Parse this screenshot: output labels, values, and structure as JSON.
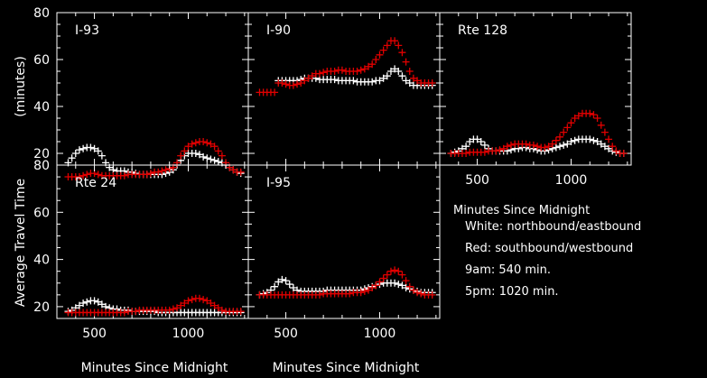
{
  "chart_data": {
    "type": "scatter",
    "layout": "3x2 grid of small multiples (bottom-right cell holds legend text)",
    "xlabel": "Minutes Since Midnight",
    "ylabel": "Average Travel Time (minutes)",
    "xlim": [
      300,
      1320
    ],
    "ylim": [
      15,
      80
    ],
    "xticks": [
      500,
      1000
    ],
    "yticks": [
      20,
      40,
      60,
      80
    ],
    "colors": {
      "northbound": "#ffffff",
      "southbound": "#e00000",
      "background": "#000000"
    },
    "x": [
      360,
      380,
      400,
      420,
      440,
      460,
      480,
      500,
      520,
      540,
      560,
      580,
      600,
      620,
      640,
      660,
      680,
      700,
      720,
      740,
      760,
      780,
      800,
      820,
      840,
      860,
      880,
      900,
      920,
      940,
      960,
      980,
      1000,
      1020,
      1040,
      1060,
      1080,
      1100,
      1120,
      1140,
      1160,
      1180,
      1200,
      1220,
      1240,
      1260,
      1280
    ],
    "panels": [
      {
        "title": "I-93",
        "series": [
          {
            "name": "White: northbound/eastbound",
            "values": [
              16,
              18,
              20,
              21.5,
              22,
              22.5,
              22.5,
              22,
              21,
              19,
              16,
              14,
              13,
              12.5,
              12.5,
              12.5,
              12,
              12,
              11.5,
              11,
              11,
              11,
              11,
              11,
              11,
              11,
              11.5,
              12,
              13,
              15,
              17,
              19,
              20,
              20,
              20,
              19.5,
              18.5,
              18,
              17.5,
              17,
              16.5,
              16,
              15,
              14,
              13,
              12,
              11.5
            ]
          },
          {
            "name": "Red: southbound/westbound",
            "values": [
              10,
              10,
              10,
              10,
              10.5,
              11,
              11.5,
              11.5,
              11,
              10.5,
              10.5,
              10.5,
              10.5,
              10.5,
              10.5,
              10.5,
              11,
              11,
              11,
              11,
              11,
              11,
              11.5,
              12,
              12,
              12.5,
              13,
              13.5,
              14,
              16,
              19,
              21,
              23,
              24,
              24.5,
              25,
              25,
              24.5,
              24,
              23,
              21,
              19,
              16,
              14,
              13,
              12,
              12
            ]
          }
        ]
      },
      {
        "title": "I-90",
        "series": [
          {
            "name": "White: northbound/eastbound",
            "values": [
              null,
              null,
              null,
              null,
              null,
              51,
              51,
              51,
              51,
              51,
              51,
              51.5,
              52,
              52,
              52,
              52,
              51.5,
              51.5,
              51.5,
              51.5,
              51.5,
              51,
              51,
              51,
              51,
              51,
              50.5,
              50.5,
              50.5,
              50.5,
              50.5,
              51,
              51,
              52,
              53,
              55,
              56,
              55,
              53,
              51,
              50,
              49,
              49,
              49,
              49,
              49,
              49
            ]
          },
          {
            "name": "Red: southbound/westbound",
            "values": [
              46,
              46,
              46,
              46,
              46,
              50,
              50,
              49.5,
              49,
              49,
              49.5,
              50,
              51,
              52,
              53,
              54,
              54,
              54.5,
              55,
              55,
              55,
              55.5,
              55.5,
              55,
              55,
              55,
              55,
              55.5,
              56,
              57,
              58,
              60,
              62,
              64,
              66,
              68,
              68,
              66,
              63,
              59,
              55,
              52,
              51,
              50,
              50,
              50,
              50
            ]
          }
        ]
      },
      {
        "title": "Rte 128",
        "series": [
          {
            "name": "White: northbound/eastbound",
            "values": [
              20,
              20.5,
              21,
              22,
              23,
              25,
              26,
              26,
              25,
              23.5,
              22,
              21,
              21,
              21,
              21,
              21,
              21.5,
              22,
              22,
              22.5,
              22.5,
              22,
              22,
              21.5,
              21,
              21,
              21.5,
              22,
              22.5,
              23,
              23.5,
              24,
              25,
              25.5,
              26,
              26,
              26,
              26,
              25.5,
              25,
              24,
              23,
              22,
              21,
              20.5,
              20,
              20
            ]
          },
          {
            "name": "Red: southbound/westbound",
            "values": [
              20,
              20,
              20,
              20,
              20,
              20.5,
              20.5,
              20.5,
              20.5,
              20.5,
              21,
              21,
              21,
              21.5,
              22,
              23,
              23.5,
              24,
              24,
              24,
              24,
              23.5,
              23.5,
              23,
              22.5,
              22.5,
              23,
              24,
              25.5,
              27,
              29,
              31,
              33,
              35,
              36,
              37,
              37,
              37,
              36.5,
              35,
              32,
              29,
              26,
              23,
              21,
              20,
              20
            ]
          }
        ]
      },
      {
        "title": "Rte 24",
        "series": [
          {
            "name": "White: northbound/eastbound",
            "values": [
              18,
              18.5,
              19.5,
              20.5,
              21.5,
              22,
              22.5,
              22.5,
              22,
              21,
              20,
              19.5,
              19,
              19,
              18.5,
              18.5,
              18.5,
              18,
              18,
              18,
              18,
              18,
              18,
              18,
              17.5,
              17.5,
              17.5,
              17.5,
              17.5,
              17.5,
              17.5,
              17.5,
              17.5,
              17.5,
              17.5,
              17.5,
              17.5,
              17.5,
              17.5,
              17.5,
              17.5,
              17.5,
              17.5,
              17.5,
              17.5,
              17.5,
              17.5
            ]
          },
          {
            "name": "Red: southbound/westbound",
            "values": [
              17.5,
              17.5,
              17.5,
              17.5,
              17.5,
              17.5,
              17.5,
              17.5,
              17.5,
              17.5,
              17.5,
              17.5,
              17.5,
              17.5,
              17.5,
              17.5,
              18,
              18,
              18,
              18.5,
              18.5,
              18.5,
              18.5,
              18.5,
              18.5,
              18.5,
              18.5,
              18.5,
              19,
              19.5,
              20.5,
              21.5,
              22.5,
              23,
              23.5,
              23.5,
              23,
              22.5,
              21.5,
              20.5,
              19.5,
              18.5,
              18,
              18,
              18,
              18,
              18
            ]
          }
        ]
      },
      {
        "title": "I-95",
        "series": [
          {
            "name": "White: northbound/eastbound",
            "values": [
              25,
              25.5,
              26,
              27,
              28.5,
              30.5,
              31.5,
              31,
              29.5,
              28,
              27,
              26.5,
              26.5,
              26.5,
              26.5,
              26.5,
              26.5,
              26.5,
              27,
              27,
              27,
              27,
              27,
              27,
              27,
              27,
              27,
              27,
              27.5,
              28,
              28.5,
              29,
              29.5,
              30,
              30,
              30,
              30,
              29.5,
              29,
              28,
              27.5,
              27,
              26.5,
              26,
              26,
              26,
              26
            ]
          },
          {
            "name": "Red: southbound/westbound",
            "values": [
              25,
              25,
              25,
              25,
              25,
              25,
              25,
              25,
              25,
              25,
              25,
              25,
              25,
              25,
              25,
              25,
              25,
              25.5,
              25.5,
              25.5,
              25.5,
              25.5,
              25.5,
              25.5,
              25.5,
              26,
              26,
              26,
              26.5,
              27,
              28,
              29,
              30.5,
              32,
              33.5,
              35,
              35.5,
              35,
              33.5,
              31,
              28.5,
              27,
              26,
              25.5,
              25,
              25,
              25
            ]
          }
        ]
      }
    ],
    "legend_lines": [
      "Minutes Since Midnight",
      "White: northbound/eastbound",
      "Red: southbound/westbound",
      "9am: 540 min.",
      "5pm: 1020 min."
    ],
    "ylabel_parts": [
      "Average Travel Time",
      "(minutes)"
    ],
    "ytick_labels": [
      "20",
      "40",
      "60",
      "80"
    ],
    "xtick_labels": [
      "500",
      "1000"
    ]
  }
}
